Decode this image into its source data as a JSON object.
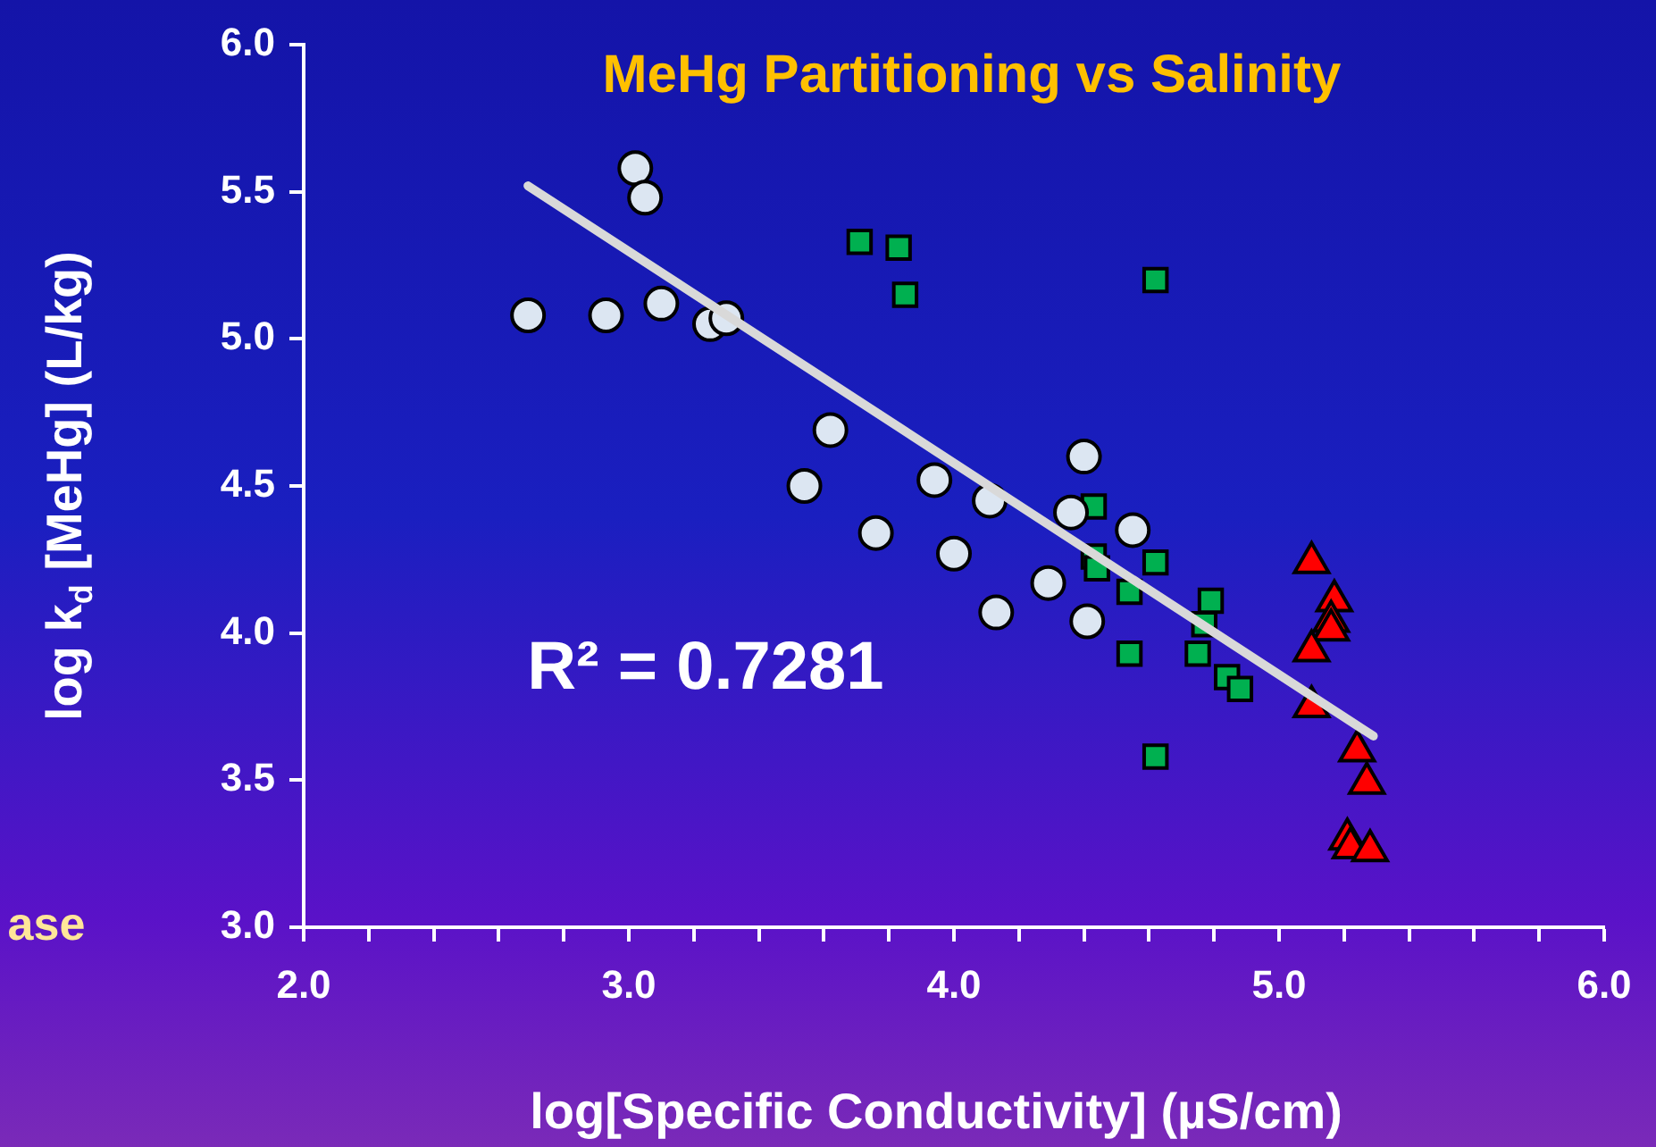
{
  "chart_data": {
    "type": "scatter",
    "title": "MeHg Partitioning vs Salinity",
    "xlabel": "log[Specific Conductivity] (µS/cm)",
    "ylabel": "log k$_{d}$ [MeHg] (L/kg)",
    "annotations": [
      "R² = 0.7281",
      "ase"
    ],
    "xlim": [
      2,
      6
    ],
    "ylim": [
      3,
      6
    ],
    "xticks": [
      {
        "value": 2,
        "label": "2.0"
      },
      {
        "value": 2.2,
        "label": null
      },
      {
        "value": 2.4,
        "label": null
      },
      {
        "value": 2.6,
        "label": null
      },
      {
        "value": 2.8,
        "label": null
      },
      {
        "value": 3,
        "label": "3.0"
      },
      {
        "value": 3.2,
        "label": null
      },
      {
        "value": 3.4,
        "label": null
      },
      {
        "value": 3.6,
        "label": null
      },
      {
        "value": 3.8,
        "label": null
      },
      {
        "value": 4,
        "label": "4.0"
      },
      {
        "value": 4.2,
        "label": null
      },
      {
        "value": 4.4,
        "label": null
      },
      {
        "value": 4.6,
        "label": null
      },
      {
        "value": 4.8,
        "label": null
      },
      {
        "value": 5,
        "label": "5.0"
      },
      {
        "value": 5.2,
        "label": null
      },
      {
        "value": 5.4,
        "label": null
      },
      {
        "value": 5.6,
        "label": null
      },
      {
        "value": 5.8,
        "label": null
      },
      {
        "value": 6,
        "label": "6.0"
      }
    ],
    "yticks": [
      {
        "value": 3,
        "label": "3.0"
      },
      {
        "value": 3.5,
        "label": "3.5"
      },
      {
        "value": 4,
        "label": "4.0"
      },
      {
        "value": 4.5,
        "label": "4.5"
      },
      {
        "value": 5,
        "label": "5.0"
      },
      {
        "value": 5.5,
        "label": "5.5"
      },
      {
        "value": 6,
        "label": "6.0"
      }
    ],
    "grid": false,
    "legend": false,
    "series": [
      {
        "type": "line",
        "color": "#d9d9d9",
        "marker": "none",
        "x": [
          2.69,
          5.29
        ],
        "values": [
          5.52,
          3.65
        ]
      },
      {
        "color": "#dce6f2",
        "marker": "circle",
        "x": [
          2.69,
          2.93,
          3.02,
          3.05,
          3.1,
          3.25,
          3.3,
          3.62,
          3.54,
          3.76,
          3.94,
          4.0,
          4.11,
          4.13,
          4.29,
          4.4,
          4.36,
          4.41,
          4.55
        ],
        "values": [
          5.08,
          5.08,
          5.58,
          5.48,
          5.12,
          5.05,
          5.07,
          4.69,
          4.5,
          4.34,
          4.52,
          4.27,
          4.45,
          4.07,
          4.17,
          4.6,
          4.41,
          4.04,
          4.35
        ]
      },
      {
        "color": "#00b050",
        "marker": "square",
        "x": [
          3.71,
          3.83,
          3.85,
          4.62,
          4.43,
          4.43,
          4.44,
          4.62,
          4.54,
          4.79,
          4.77,
          4.75,
          4.54,
          4.84,
          4.88,
          4.62
        ],
        "values": [
          5.33,
          5.31,
          5.15,
          5.2,
          4.43,
          4.26,
          4.22,
          4.24,
          4.14,
          4.11,
          4.03,
          3.93,
          3.93,
          3.85,
          3.81,
          3.58
        ]
      },
      {
        "color": "#ff0000",
        "marker": "triangle",
        "x": [
          5.1,
          5.17,
          5.16,
          5.16,
          5.1,
          5.1,
          5.24,
          5.27,
          5.21,
          5.22,
          5.28
        ],
        "values": [
          4.24,
          4.11,
          4.04,
          4.01,
          3.94,
          3.75,
          3.6,
          3.49,
          3.3,
          3.27,
          3.26
        ]
      }
    ]
  }
}
